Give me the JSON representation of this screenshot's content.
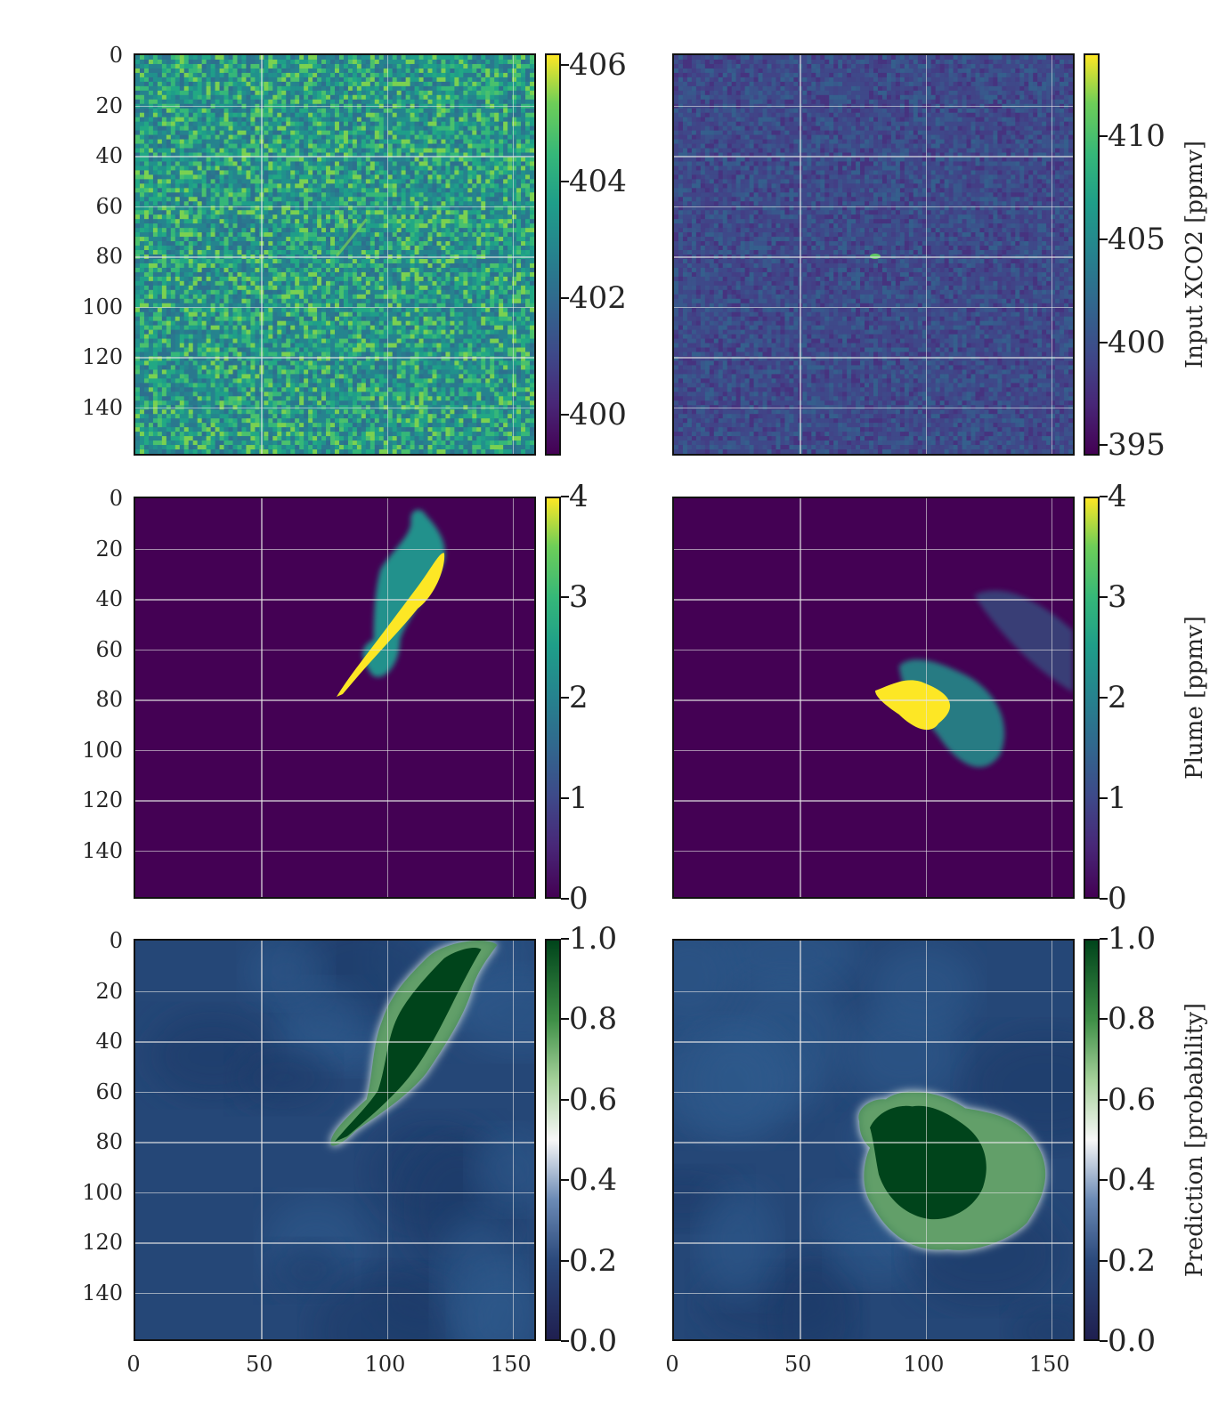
{
  "chart_data": {
    "type": "heatmap",
    "rows": [
      {
        "colorbar": {
          "title": "Input XCO2 [ppmv]",
          "left": {
            "range": [
              399.3,
              406.2
            ],
            "ticks": [
              "406",
              "404",
              "402",
              "400"
            ],
            "tick_values": [
              406,
              404,
              402,
              400
            ],
            "colormap": "viridis"
          },
          "right": {
            "range": [
              394.5,
              414
            ],
            "ticks": [
              "410",
              "405",
              "400",
              "395"
            ],
            "tick_values": [
              410,
              405,
              400,
              395
            ],
            "colormap": "viridis"
          }
        }
      },
      {
        "colorbar": {
          "title": "Plume [ppmv]",
          "left": {
            "range": [
              0,
              4
            ],
            "ticks": [
              "4",
              "3",
              "2",
              "1",
              "0"
            ],
            "tick_values": [
              4,
              3,
              2,
              1,
              0
            ],
            "colormap": "viridis"
          },
          "right": {
            "range": [
              0,
              4
            ],
            "ticks": [
              "4",
              "3",
              "2",
              "1",
              "0"
            ],
            "tick_values": [
              4,
              3,
              2,
              1,
              0
            ],
            "colormap": "viridis"
          }
        }
      },
      {
        "colorbar": {
          "title": "Prediction [probability]",
          "left": {
            "range": [
              0,
              1
            ],
            "ticks": [
              "1.0",
              "0.8",
              "0.6",
              "0.4",
              "0.2",
              "0.0"
            ],
            "tick_values": [
              1,
              0.8,
              0.6,
              0.4,
              0.2,
              0
            ],
            "colormap": "blue-white-green"
          },
          "right": {
            "range": [
              0,
              1
            ],
            "ticks": [
              "1.0",
              "0.8",
              "0.6",
              "0.4",
              "0.2",
              "0.0"
            ],
            "tick_values": [
              1,
              0.8,
              0.6,
              0.4,
              0.2,
              0
            ],
            "colormap": "blue-white-green"
          }
        }
      }
    ],
    "y_axis": {
      "range": [
        0,
        160
      ],
      "ticks": [
        "0",
        "20",
        "40",
        "60",
        "80",
        "100",
        "120",
        "140"
      ],
      "tick_values": [
        0,
        20,
        40,
        60,
        80,
        100,
        120,
        140
      ]
    },
    "x_axis": {
      "range": [
        0,
        160
      ],
      "ticks": [
        "0",
        "50",
        "100",
        "150"
      ],
      "tick_values": [
        0,
        50,
        100,
        150
      ]
    },
    "grid": true
  },
  "colors": {
    "viridis_low": "#440154",
    "viridis_mid": "#21918c",
    "viridis_high": "#fde725",
    "pred_low": "#1b2a5c",
    "pred_mid": "#f7f7f7",
    "pred_high": "#00441b"
  }
}
